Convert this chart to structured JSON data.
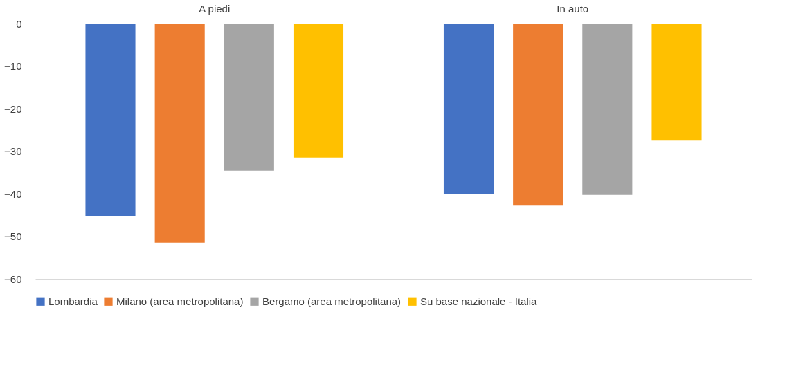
{
  "chart_data": {
    "type": "bar",
    "categories": [
      "A piedi",
      "In auto"
    ],
    "series": [
      {
        "name": "Lombardia",
        "color": "#4472c4",
        "values": [
          -45.2,
          -40.0
        ]
      },
      {
        "name": "Milano (area metropolitana)",
        "color": "#ed7d31",
        "values": [
          -51.5,
          -42.8
        ]
      },
      {
        "name": "Bergamo (area metropolitana)",
        "color": "#a5a5a5",
        "values": [
          -34.6,
          -40.3
        ]
      },
      {
        "name": "Su base nazionale - Italia",
        "color": "#ffc000",
        "values": [
          -31.5,
          -27.5
        ]
      }
    ],
    "ylim": [
      -60,
      0
    ],
    "yticks": [
      0,
      -10,
      -20,
      -30,
      -40,
      -50,
      -60
    ],
    "grid": "y",
    "legend": "bottom"
  }
}
